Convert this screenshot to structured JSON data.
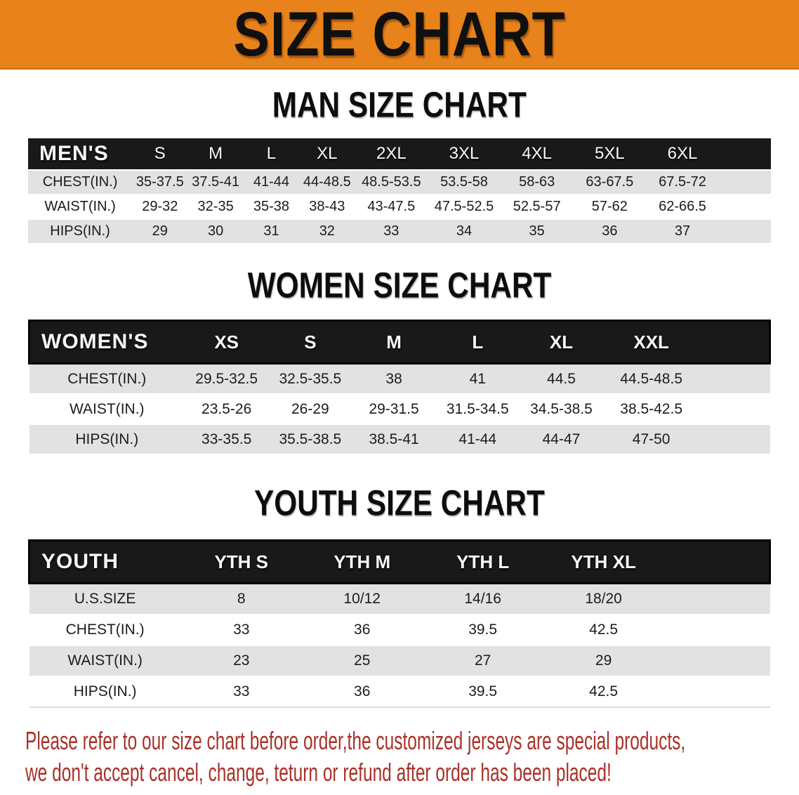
{
  "banner": {
    "title": "SIZE CHART",
    "bg_color": "#E8821B"
  },
  "sections": [
    {
      "heading": "MAN SIZE CHART",
      "label": "MEN'S",
      "sizes": [
        "S",
        "M",
        "L",
        "XL",
        "2XL",
        "3XL",
        "4XL",
        "5XL",
        "6XL"
      ],
      "rows": [
        {
          "label": "CHEST(IN.)",
          "values": [
            "35-37.5",
            "37.5-41",
            "41-44",
            "44-48.5",
            "48.5-53.5",
            "53.5-58",
            "58-63",
            "63-67.5",
            "67.5-72"
          ]
        },
        {
          "label": "WAIST(IN.)",
          "values": [
            "29-32",
            "32-35",
            "35-38",
            "38-43",
            "43-47.5",
            "47.5-52.5",
            "52.5-57",
            "57-62",
            "62-66.5"
          ]
        },
        {
          "label": "HIPS(IN.)",
          "values": [
            "29",
            "30",
            "31",
            "32",
            "33",
            "34",
            "35",
            "36",
            "37"
          ]
        }
      ]
    },
    {
      "heading": "WOMEN SIZE CHART",
      "label": "WOMEN'S",
      "sizes": [
        "XS",
        "S",
        "M",
        "L",
        "XL",
        "XXL"
      ],
      "rows": [
        {
          "label": "CHEST(IN.)",
          "values": [
            "29.5-32.5",
            "32.5-35.5",
            "38",
            "41",
            "44.5",
            "44.5-48.5"
          ]
        },
        {
          "label": "WAIST(IN.)",
          "values": [
            "23.5-26",
            "26-29",
            "29-31.5",
            "31.5-34.5",
            "34.5-38.5",
            "38.5-42.5"
          ]
        },
        {
          "label": "HIPS(IN.)",
          "values": [
            "33-35.5",
            "35.5-38.5",
            "38.5-41",
            "41-44",
            "44-47",
            "47-50"
          ]
        }
      ]
    },
    {
      "heading": "YOUTH SIZE CHART",
      "label": "YOUTH",
      "sizes": [
        "YTH S",
        "YTH M",
        "YTH L",
        "YTH XL"
      ],
      "rows": [
        {
          "label": "U.S.SIZE",
          "values": [
            "8",
            "10/12",
            "14/16",
            "18/20"
          ]
        },
        {
          "label": "CHEST(IN.)",
          "values": [
            "33",
            "36",
            "39.5",
            "42.5"
          ]
        },
        {
          "label": "WAIST(IN.)",
          "values": [
            "23",
            "25",
            "27",
            "29"
          ]
        },
        {
          "label": "HIPS(IN.)",
          "values": [
            "33",
            "36",
            "39.5",
            "42.5"
          ]
        }
      ]
    }
  ],
  "footer": {
    "line1": "Please refer to our size chart before order,the customized jerseys are special products,",
    "line2": "we don't accept cancel, change, teturn or refund after order has been placed!",
    "color": "#A93128"
  }
}
